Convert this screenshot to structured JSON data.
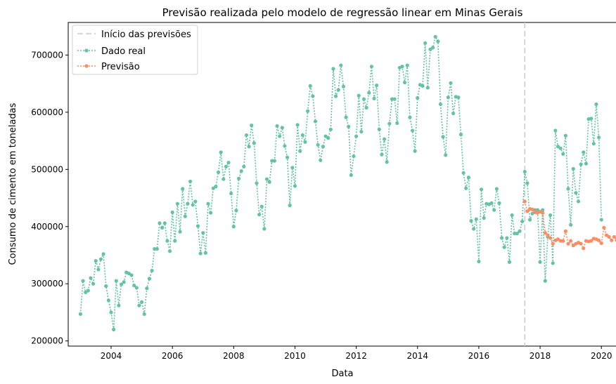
{
  "chart_data": {
    "type": "line",
    "title": "Previsão realizada pelo modelo de regressão linear em Minas Gerais",
    "xlabel": "Data",
    "ylabel": "Consumo de cimento em toneladas",
    "xlim": [
      2002.6,
      2020.5
    ],
    "ylim": [
      191000,
      757000
    ],
    "x_ticks": [
      2004,
      2006,
      2008,
      2010,
      2012,
      2014,
      2016,
      2018,
      2020
    ],
    "y_ticks": [
      200000,
      300000,
      400000,
      500000,
      600000,
      700000
    ],
    "forecast_start": 2017.5,
    "legend_position": "top-left",
    "legend": {
      "start": "Início das previsões",
      "real": "Dado real",
      "forecast": "Previsão"
    },
    "colors": {
      "real": "#66c2a5",
      "forecast": "#fc8d62",
      "start_line": "#cccccc"
    },
    "series": [
      {
        "name": "Dado real",
        "start": 2003.0,
        "values": [
          247000,
          305000,
          285000,
          288000,
          310000,
          300000,
          340000,
          325000,
          343000,
          352000,
          296000,
          271000,
          250000,
          220000,
          305000,
          262000,
          299000,
          303000,
          320000,
          318000,
          315000,
          297000,
          293000,
          262000,
          268000,
          247000,
          292000,
          309000,
          323000,
          361000,
          361000,
          406000,
          398000,
          406000,
          375000,
          357000,
          425000,
          375000,
          440000,
          391000,
          466000,
          418000,
          440000,
          479000,
          438000,
          444000,
          401000,
          353000,
          389000,
          354000,
          440000,
          424000,
          467000,
          470000,
          495000,
          530000,
          483000,
          505000,
          512000,
          458000,
          400000,
          428000,
          484000,
          497000,
          505000,
          560000,
          540000,
          577000,
          546000,
          476000,
          421000,
          435000,
          396000,
          483000,
          478000,
          515000,
          515000,
          576000,
          558000,
          573000,
          541000,
          521000,
          437000,
          503000,
          471000,
          578000,
          532000,
          560000,
          548000,
          602000,
          646000,
          628000,
          584000,
          543000,
          516000,
          540000,
          558000,
          555000,
          570000,
          676000,
          628000,
          639000,
          682000,
          645000,
          591000,
          575000,
          490000,
          523000,
          558000,
          629000,
          566000,
          623000,
          608000,
          634000,
          680000,
          624000,
          647000,
          570000,
          526000,
          553000,
          513000,
          580000,
          623000,
          623000,
          581000,
          678000,
          680000,
          652000,
          682000,
          591000,
          568000,
          532000,
          625000,
          648000,
          646000,
          721000,
          643000,
          710000,
          713000,
          732000,
          724000,
          614000,
          557000,
          525000,
          626000,
          651000,
          598000,
          627000,
          626000,
          561000,
          494000,
          467000,
          486000,
          410000,
          396000,
          413000,
          339000,
          465000,
          415000,
          440000,
          439000,
          441000,
          429000,
          466000,
          441000,
          380000,
          364000,
          380000,
          338000,
          420000,
          388000,
          388000,
          392000,
          409000,
          496000,
          476000,
          412000,
          423000,
          429000,
          429000,
          338000,
          429000,
          305000,
          382000,
          420000,
          336000,
          568000,
          540000,
          537000,
          527000,
          559000,
          466000,
          403000,
          501000,
          459000,
          444000,
          509000,
          530000,
          510000,
          588000,
          589000,
          545000,
          614000,
          556000,
          412000
        ]
      },
      {
        "name": "Previsão",
        "start": 2017.5,
        "values": [
          444000,
          427000,
          431000,
          430000,
          425000,
          424000,
          426000,
          424000,
          389000,
          385000,
          380000,
          370000,
          376000,
          378000,
          375000,
          375000,
          392000,
          370000,
          375000,
          367000,
          370000,
          372000,
          370000,
          362000,
          375000,
          374000,
          375000,
          379000,
          378000,
          376000,
          371000,
          398000,
          385000,
          382000,
          376000,
          382000,
          376000,
          374000
        ]
      }
    ]
  }
}
